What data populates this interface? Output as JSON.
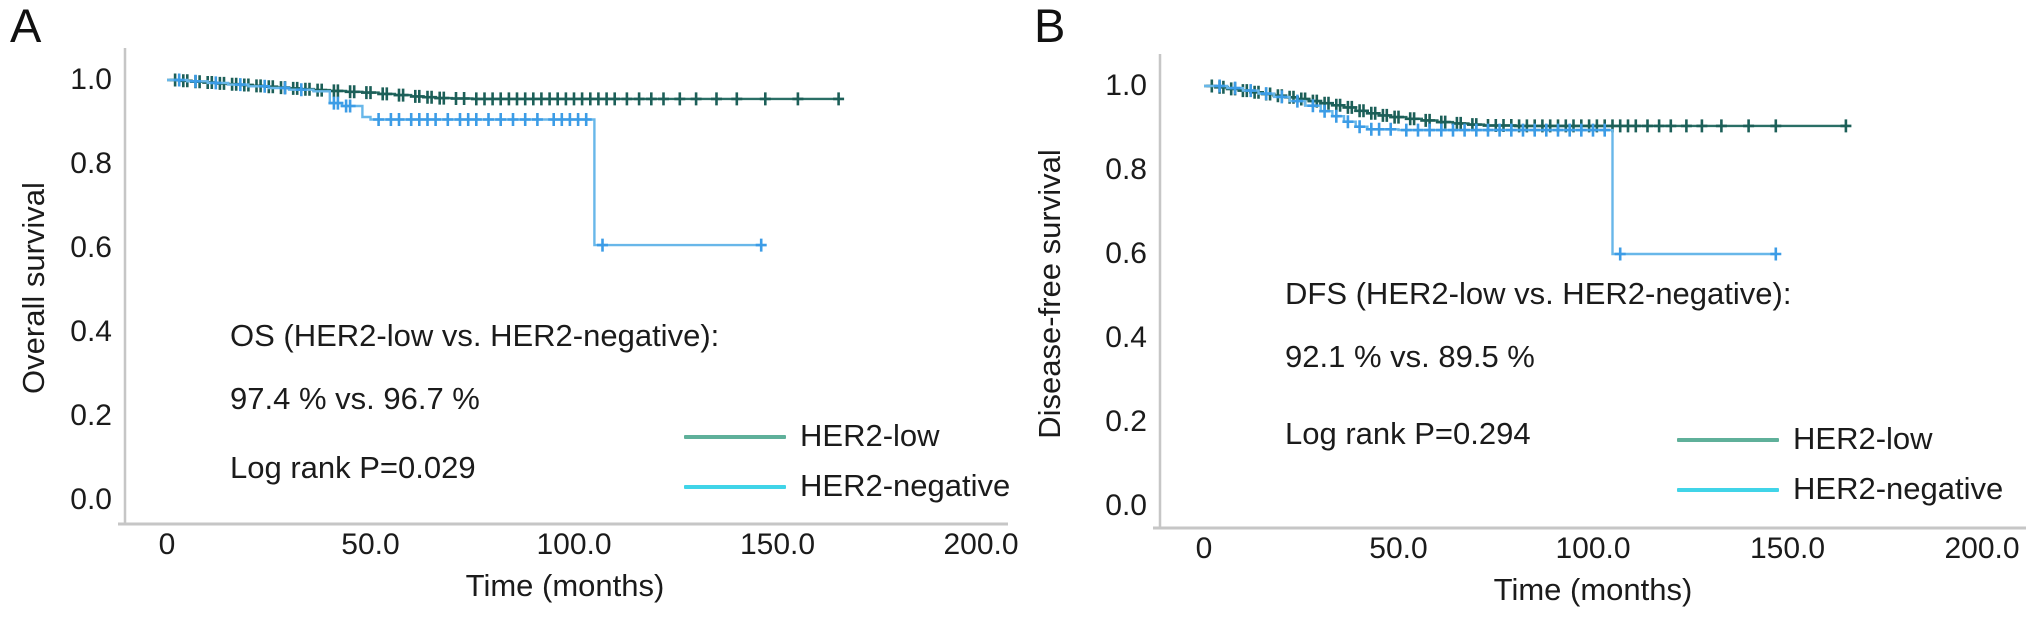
{
  "panels": [
    {
      "label": "A",
      "ylabel": "Overall survival",
      "xlabel": "Time (months)",
      "annotation": {
        "line1": "OS (HER2-low vs. HER2-negative):",
        "line2": "97.4 % vs. 96.7 %",
        "logrank": "Log rank P=0.029"
      }
    },
    {
      "label": "B",
      "ylabel": "Disease-free survival",
      "xlabel": "Time (months)",
      "annotation": {
        "line1": "DFS (HER2-low vs. HER2-negative):",
        "line2": "92.1 % vs. 89.5 %",
        "logrank": "Log rank P=0.294"
      }
    }
  ],
  "colors": {
    "axis": "#c6c6c6",
    "text": "#1b1b1b"
  },
  "chart_data": [
    {
      "type": "line",
      "subtype": "kaplan_meier_step",
      "panel": "A",
      "title": "",
      "xlabel": "Time (months)",
      "ylabel": "Overall survival",
      "xlim": [
        0,
        200
      ],
      "ylim": [
        0.0,
        1.0
      ],
      "grid": false,
      "legend_position": "lower-right",
      "xtick_values": [
        0,
        50,
        100,
        150,
        200
      ],
      "xtick_labels": [
        "0",
        "50.0",
        "100.0",
        "150.0",
        "200.0"
      ],
      "ytick_values": [
        1.0,
        0.8,
        0.6,
        0.4,
        0.2,
        0.0
      ],
      "ytick_labels": [
        "1.0",
        "0.8",
        "0.6",
        "0.4",
        "0.2",
        "0.0"
      ],
      "annotations": [
        "OS (HER2-low vs. HER2-negative):",
        "97.4 % vs. 96.7 %",
        "Log rank P=0.029"
      ],
      "survival_rates": {
        "HER2-low": 97.4,
        "HER2-negative": 96.7
      },
      "log_rank_p": 0.029,
      "series": [
        {
          "name": "HER2-low",
          "curve_color": "#2a6f66",
          "censor_color": "#1c5f58",
          "legend_color": "#5fb09a",
          "steps": [
            [
              0,
              1.0
            ],
            [
              3,
              0.998
            ],
            [
              6,
              0.996
            ],
            [
              9,
              0.994
            ],
            [
              12,
              0.992
            ],
            [
              15,
              0.99
            ],
            [
              18,
              0.988
            ],
            [
              21,
              0.986
            ],
            [
              24,
              0.984
            ],
            [
              27,
              0.982
            ],
            [
              30,
              0.98
            ],
            [
              33,
              0.978
            ],
            [
              36,
              0.976
            ],
            [
              40,
              0.974
            ],
            [
              44,
              0.972
            ],
            [
              48,
              0.97
            ],
            [
              52,
              0.967
            ],
            [
              56,
              0.964
            ],
            [
              60,
              0.961
            ],
            [
              63,
              0.959
            ],
            [
              66,
              0.957
            ],
            [
              70,
              0.956
            ],
            [
              75,
              0.955
            ],
            [
              165,
              0.955
            ]
          ],
          "censor_times": [
            2,
            4,
            5,
            7,
            8,
            10,
            11,
            13,
            14,
            16,
            17,
            19,
            20,
            22,
            23,
            25,
            26,
            28,
            29,
            31,
            32,
            34,
            35,
            37,
            38,
            41,
            42,
            45,
            46,
            49,
            50,
            53,
            54,
            57,
            58,
            61,
            62,
            64,
            65,
            67,
            68,
            71,
            73,
            76,
            78,
            80,
            82,
            84,
            86,
            88,
            90,
            92,
            94,
            96,
            98,
            100,
            102,
            104,
            106,
            108,
            110,
            113,
            116,
            119,
            122,
            126,
            130,
            135,
            140,
            147,
            155,
            165
          ]
        },
        {
          "name": "HER2-negative",
          "curve_color": "#68b7e9",
          "censor_color": "#3c9ce6",
          "legend_color": "#40d4e8",
          "steps": [
            [
              0,
              1.0
            ],
            [
              5,
              0.997
            ],
            [
              10,
              0.993
            ],
            [
              15,
              0.989
            ],
            [
              20,
              0.985
            ],
            [
              25,
              0.981
            ],
            [
              30,
              0.977
            ],
            [
              36,
              0.973
            ],
            [
              40,
              0.945
            ],
            [
              43,
              0.938
            ],
            [
              48,
              0.912
            ],
            [
              50,
              0.906
            ],
            [
              105,
              0.906
            ],
            [
              105,
              0.607
            ],
            [
              146,
              0.607
            ]
          ],
          "censor_times": [
            3,
            7,
            12,
            18,
            24,
            29,
            33,
            41,
            42,
            44,
            45,
            52,
            55,
            57,
            60,
            62,
            64,
            66,
            69,
            72,
            74,
            76,
            79,
            82,
            85,
            88,
            91,
            95,
            97,
            99,
            101,
            103,
            107,
            146
          ]
        }
      ]
    },
    {
      "type": "line",
      "subtype": "kaplan_meier_step",
      "panel": "B",
      "title": "",
      "xlabel": "Time (months)",
      "ylabel": "Disease-free survival",
      "xlim": [
        0,
        200
      ],
      "ylim": [
        0.0,
        1.0
      ],
      "grid": false,
      "legend_position": "lower-right",
      "xtick_values": [
        0,
        50,
        100,
        150,
        200
      ],
      "xtick_labels": [
        "0",
        "50.0",
        "100.0",
        "150.0",
        "200.0"
      ],
      "ytick_values": [
        1.0,
        0.8,
        0.6,
        0.4,
        0.2,
        0.0
      ],
      "ytick_labels": [
        "1.0",
        "0.8",
        "0.6",
        "0.4",
        "0.2",
        "0.0"
      ],
      "annotations": [
        "DFS (HER2-low vs. HER2-negative):",
        "92.1 % vs. 89.5 %",
        "Log rank P=0.294"
      ],
      "survival_rates": {
        "HER2-low": 92.1,
        "HER2-negative": 89.5
      },
      "log_rank_p": 0.294,
      "series": [
        {
          "name": "HER2-low",
          "curve_color": "#2a6f66",
          "censor_color": "#1c5f58",
          "legend_color": "#5fb09a",
          "steps": [
            [
              0,
              1.0
            ],
            [
              3,
              0.997
            ],
            [
              6,
              0.993
            ],
            [
              9,
              0.989
            ],
            [
              12,
              0.985
            ],
            [
              15,
              0.981
            ],
            [
              18,
              0.977
            ],
            [
              21,
              0.973
            ],
            [
              24,
              0.969
            ],
            [
              27,
              0.964
            ],
            [
              30,
              0.959
            ],
            [
              33,
              0.954
            ],
            [
              36,
              0.949
            ],
            [
              39,
              0.941
            ],
            [
              42,
              0.935
            ],
            [
              45,
              0.93
            ],
            [
              48,
              0.926
            ],
            [
              52,
              0.922
            ],
            [
              56,
              0.918
            ],
            [
              60,
              0.914
            ],
            [
              64,
              0.911
            ],
            [
              68,
              0.908
            ],
            [
              72,
              0.906
            ],
            [
              80,
              0.905
            ],
            [
              165,
              0.905
            ]
          ],
          "censor_times": [
            2,
            4,
            5,
            7,
            8,
            10,
            11,
            13,
            14,
            16,
            17,
            19,
            20,
            22,
            23,
            25,
            26,
            28,
            29,
            31,
            32,
            34,
            35,
            37,
            38,
            40,
            41,
            43,
            44,
            46,
            47,
            49,
            50,
            53,
            54,
            57,
            58,
            61,
            62,
            65,
            66,
            69,
            70,
            73,
            75,
            77,
            79,
            81,
            83,
            85,
            87,
            89,
            91,
            93,
            95,
            97,
            99,
            101,
            103,
            105,
            107,
            109,
            111,
            114,
            117,
            120,
            124,
            128,
            133,
            140,
            147,
            165
          ]
        },
        {
          "name": "HER2-negative",
          "curve_color": "#68b7e9",
          "censor_color": "#3c9ce6",
          "legend_color": "#40d4e8",
          "steps": [
            [
              0,
              1.0
            ],
            [
              6,
              0.995
            ],
            [
              10,
              0.989
            ],
            [
              14,
              0.982
            ],
            [
              18,
              0.974
            ],
            [
              22,
              0.964
            ],
            [
              26,
              0.953
            ],
            [
              30,
              0.94
            ],
            [
              33,
              0.928
            ],
            [
              36,
              0.915
            ],
            [
              39,
              0.903
            ],
            [
              42,
              0.897
            ],
            [
              50,
              0.895
            ],
            [
              105,
              0.895
            ],
            [
              105,
              0.6
            ],
            [
              147,
              0.6
            ]
          ],
          "censor_times": [
            4,
            8,
            12,
            16,
            20,
            24,
            28,
            31,
            34,
            37,
            40,
            43,
            45,
            48,
            52,
            55,
            58,
            61,
            64,
            67,
            70,
            73,
            76,
            79,
            82,
            85,
            88,
            91,
            94,
            97,
            100,
            103,
            107,
            147
          ]
        }
      ]
    }
  ]
}
